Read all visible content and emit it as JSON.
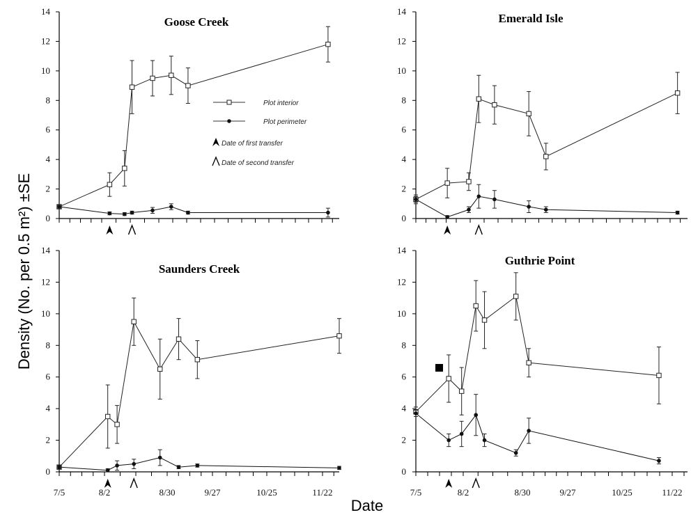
{
  "figure": {
    "ylabel": "Density (No. per 0.5 m²) ±SE",
    "xlabel": "Date"
  },
  "legend": {
    "interior": "Plot interior",
    "perimeter": "Plot perimeter",
    "first_transfer": "Date of first transfer",
    "second_transfer": "Date of second transfer"
  },
  "chart_data": [
    {
      "type": "line",
      "title": "Goose Creek",
      "x_ticks": [
        "7/5",
        "8/2",
        "8/30",
        "9/27",
        "10/25",
        "11/22"
      ],
      "ylim": [
        0,
        14
      ],
      "y_ticks": [
        0,
        2,
        4,
        6,
        8,
        10,
        12,
        14
      ],
      "first_transfer_day": 27,
      "second_transfer_day": 39,
      "series": [
        {
          "name": "Plot interior",
          "x": [
            0,
            27,
            35,
            39,
            50,
            60,
            69,
            144
          ],
          "y": [
            0.8,
            2.3,
            3.4,
            8.9,
            9.5,
            9.7,
            9.0,
            11.8
          ],
          "se": [
            0.1,
            0.8,
            1.2,
            1.8,
            1.2,
            1.3,
            1.2,
            1.2
          ]
        },
        {
          "name": "Plot perimeter",
          "x": [
            0,
            27,
            35,
            39,
            50,
            60,
            69,
            144
          ],
          "y": [
            0.8,
            0.35,
            0.3,
            0.4,
            0.55,
            0.8,
            0.4,
            0.4
          ],
          "se": [
            0.1,
            0.1,
            0.1,
            0.1,
            0.2,
            0.2,
            0.1,
            0.3
          ]
        }
      ]
    },
    {
      "type": "line",
      "title": "Emerald Isle",
      "x_ticks": [
        "7/5",
        "8/2",
        "8/30",
        "9/27",
        "10/25",
        "11/22"
      ],
      "ylim": [
        0,
        14
      ],
      "y_ticks": [
        0,
        2,
        4,
        6,
        8,
        10,
        12,
        14
      ],
      "first_transfer_day": 22,
      "second_transfer_day": 44,
      "series": [
        {
          "name": "Plot interior",
          "x": [
            0,
            22,
            37,
            44,
            55,
            79,
            91,
            183
          ],
          "y": [
            1.3,
            2.4,
            2.5,
            8.1,
            7.7,
            7.1,
            4.2,
            8.5
          ],
          "se": [
            0.2,
            1.0,
            0.6,
            1.6,
            1.3,
            1.5,
            0.9,
            1.4
          ]
        },
        {
          "name": "Plot perimeter",
          "x": [
            0,
            22,
            37,
            44,
            55,
            79,
            91,
            183
          ],
          "y": [
            1.3,
            0.1,
            0.6,
            1.5,
            1.3,
            0.8,
            0.6,
            0.4
          ],
          "se": [
            0.3,
            0.1,
            0.2,
            0.8,
            0.6,
            0.4,
            0.2,
            0.1
          ]
        }
      ]
    },
    {
      "type": "line",
      "title": "Saunders Creek",
      "x_ticks": [
        "7/5",
        "8/2",
        "8/30",
        "9/27",
        "10/25",
        "11/22"
      ],
      "ylim": [
        0,
        14
      ],
      "y_ticks": [
        0,
        2,
        4,
        6,
        8,
        10,
        12,
        14
      ],
      "first_transfer_day": 26,
      "second_transfer_day": 40,
      "series": [
        {
          "name": "Plot interior",
          "x": [
            0,
            26,
            31,
            40,
            54,
            64,
            74,
            150
          ],
          "y": [
            0.3,
            3.5,
            3.0,
            9.5,
            6.5,
            8.4,
            7.1,
            8.6
          ],
          "se": [
            0.1,
            2.0,
            1.2,
            1.5,
            1.9,
            1.3,
            1.2,
            1.1
          ]
        },
        {
          "name": "Plot perimeter",
          "x": [
            0,
            26,
            31,
            40,
            54,
            64,
            74,
            150
          ],
          "y": [
            0.3,
            0.1,
            0.4,
            0.5,
            0.9,
            0.3,
            0.4,
            0.25
          ],
          "se": [
            0.1,
            0.1,
            0.3,
            0.3,
            0.5,
            0.1,
            0.1,
            0.1
          ]
        }
      ]
    },
    {
      "type": "line",
      "title": "Guthrie Point",
      "x_ticks": [
        "7/5",
        "8/2",
        "8/30",
        "9/27",
        "10/25",
        "11/22"
      ],
      "ylim": [
        0,
        14
      ],
      "y_ticks": [
        0,
        2,
        4,
        6,
        8,
        10,
        12,
        14
      ],
      "first_transfer_day": 23,
      "second_transfer_day": 42,
      "series": [
        {
          "name": "Plot interior",
          "x": [
            0,
            23,
            32,
            42,
            48,
            70,
            79,
            170
          ],
          "y": [
            3.8,
            5.9,
            5.1,
            10.5,
            9.6,
            11.1,
            6.9,
            6.1
          ],
          "se": [
            0.3,
            1.5,
            1.5,
            1.6,
            1.8,
            1.5,
            0.9,
            1.8
          ]
        },
        {
          "name": "Plot perimeter",
          "x": [
            0,
            23,
            32,
            42,
            48,
            70,
            79,
            170
          ],
          "y": [
            3.7,
            2.0,
            2.4,
            3.6,
            2.0,
            1.2,
            2.6,
            0.7
          ],
          "se": [
            0.2,
            0.4,
            0.8,
            1.3,
            0.4,
            0.2,
            0.8,
            0.2
          ]
        }
      ]
    }
  ]
}
